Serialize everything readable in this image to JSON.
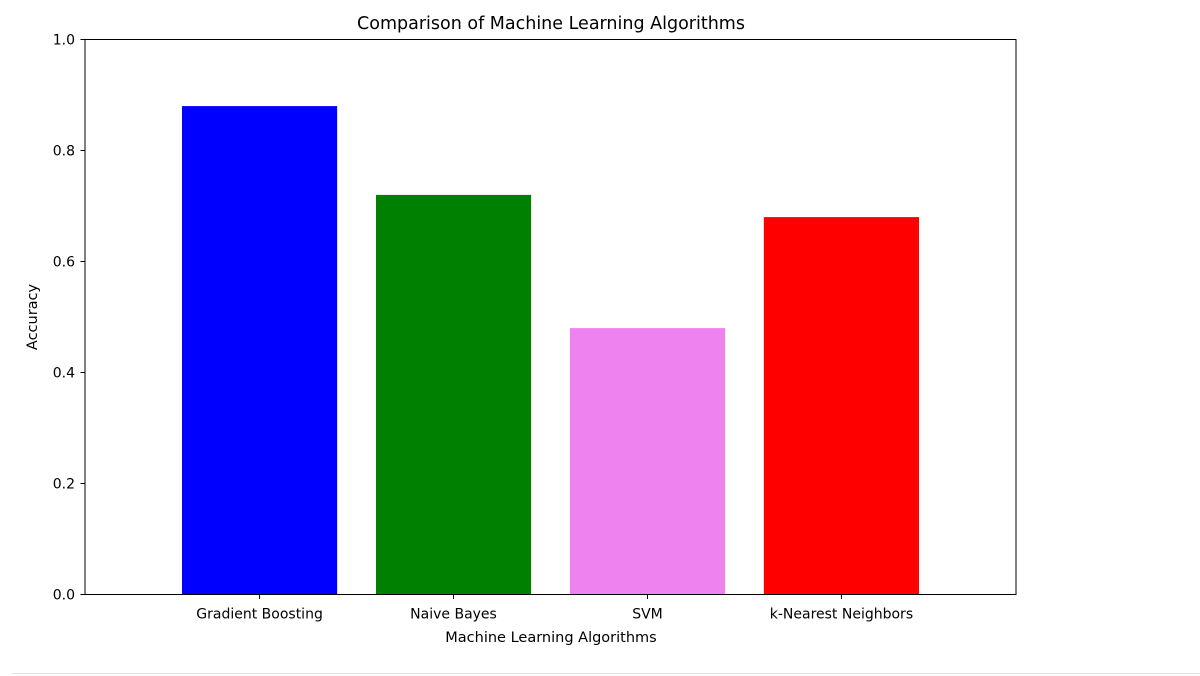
{
  "chart_data": {
    "type": "bar",
    "title": "Comparison of Machine Learning Algorithms",
    "xlabel": "Machine Learning Algorithms",
    "ylabel": "Accuracy",
    "categories": [
      "Gradient Boosting",
      "Naive Bayes",
      "SVM",
      "k-Nearest Neighbors"
    ],
    "values": [
      0.88,
      0.72,
      0.48,
      0.68
    ],
    "colors": [
      "#0000ff",
      "#008000",
      "#ee82ee",
      "#ff0000"
    ],
    "ylim": [
      0,
      1.0
    ],
    "yticks": [
      0.0,
      0.2,
      0.4,
      0.6,
      0.8,
      1.0
    ],
    "ytick_labels": [
      "0.0",
      "0.2",
      "0.4",
      "0.6",
      "0.8",
      "1.0"
    ],
    "grid": false,
    "legend": false
  }
}
